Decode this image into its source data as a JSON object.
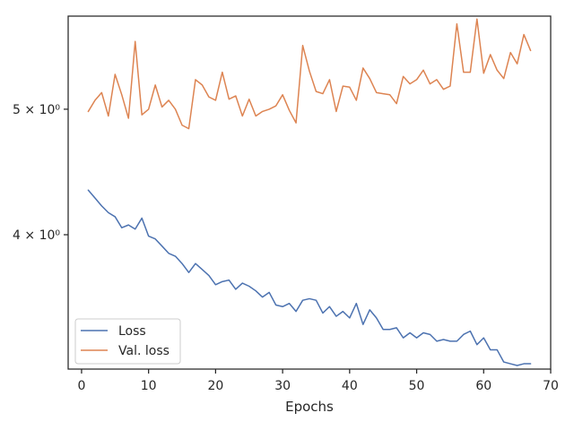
{
  "chart_data": {
    "type": "line",
    "title": "",
    "xlabel": "Epochs",
    "ylabel": "",
    "xlim": [
      -2,
      70
    ],
    "ylim": [
      3.15,
      5.9
    ],
    "yscale": "log",
    "grid": false,
    "legend_position": "lower-left",
    "x_ticks": [
      0,
      10,
      20,
      30,
      40,
      50,
      60,
      70
    ],
    "x_tick_labels": [
      "0",
      "10",
      "20",
      "30",
      "40",
      "50",
      "60",
      "70"
    ],
    "y_ticks": [
      4,
      5
    ],
    "y_tick_labels": [
      "4 × 10⁰",
      "5 × 10⁰"
    ],
    "x": [
      1,
      2,
      3,
      4,
      5,
      6,
      7,
      8,
      9,
      10,
      11,
      12,
      13,
      14,
      15,
      16,
      17,
      18,
      19,
      20,
      21,
      22,
      23,
      24,
      25,
      26,
      27,
      28,
      29,
      30,
      31,
      32,
      33,
      34,
      35,
      36,
      37,
      38,
      39,
      40,
      41,
      42,
      43,
      44,
      45,
      46,
      47,
      48,
      49,
      50,
      51,
      52,
      53,
      54,
      55,
      56,
      57,
      58,
      59,
      60,
      61,
      62,
      63,
      64,
      65,
      66,
      67
    ],
    "series": [
      {
        "name": "Loss",
        "color": "#4c72b0",
        "values": [
          4.33,
          4.27,
          4.21,
          4.16,
          4.13,
          4.05,
          4.07,
          4.04,
          4.12,
          3.99,
          3.97,
          3.92,
          3.87,
          3.85,
          3.8,
          3.74,
          3.8,
          3.76,
          3.72,
          3.66,
          3.68,
          3.69,
          3.63,
          3.67,
          3.65,
          3.62,
          3.58,
          3.61,
          3.53,
          3.52,
          3.54,
          3.49,
          3.56,
          3.57,
          3.56,
          3.48,
          3.52,
          3.46,
          3.49,
          3.45,
          3.54,
          3.41,
          3.5,
          3.45,
          3.38,
          3.38,
          3.39,
          3.33,
          3.36,
          3.33,
          3.36,
          3.35,
          3.31,
          3.32,
          3.31,
          3.31,
          3.35,
          3.37,
          3.29,
          3.33,
          3.26,
          3.26,
          3.19,
          3.18,
          3.17,
          3.18,
          3.18
        ]
      },
      {
        "name": "Val. loss",
        "color": "#dd8452",
        "values": [
          4.98,
          5.08,
          5.15,
          4.94,
          5.32,
          5.13,
          4.92,
          5.64,
          4.95,
          5.0,
          5.22,
          5.02,
          5.08,
          5.0,
          4.86,
          4.83,
          5.27,
          5.22,
          5.11,
          5.08,
          5.34,
          5.09,
          5.12,
          4.94,
          5.09,
          4.94,
          4.98,
          5.0,
          5.03,
          5.13,
          4.99,
          4.88,
          5.6,
          5.35,
          5.16,
          5.14,
          5.27,
          4.98,
          5.21,
          5.2,
          5.08,
          5.38,
          5.28,
          5.15,
          5.14,
          5.13,
          5.05,
          5.3,
          5.23,
          5.27,
          5.36,
          5.23,
          5.27,
          5.18,
          5.21,
          5.82,
          5.34,
          5.34,
          5.87,
          5.33,
          5.51,
          5.36,
          5.28,
          5.53,
          5.42,
          5.71,
          5.55
        ]
      }
    ]
  }
}
